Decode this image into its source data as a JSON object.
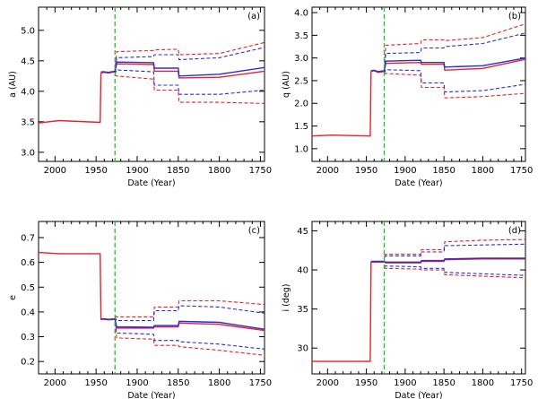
{
  "chart_data": [
    {
      "type": "line",
      "panel": "(a)",
      "xlabel": "Date (Year)",
      "ylabel": "a (AU)",
      "xlim": [
        2020,
        1745
      ],
      "ylim": [
        2.85,
        5.38
      ],
      "xticks": [
        2000,
        1950,
        1900,
        1850,
        1800,
        1750
      ],
      "yticks": [
        3.0,
        3.5,
        4.0,
        4.5,
        5.0
      ],
      "ytick_format": 1,
      "marker_year": 1927,
      "x": [
        2020,
        1995,
        1945,
        1944,
        1940,
        1935,
        1927,
        1925,
        1880,
        1879,
        1850,
        1849,
        1800,
        1745
      ],
      "series": [
        {
          "color": "#e8202a",
          "dash": false,
          "values": [
            3.48,
            3.52,
            3.49,
            4.3,
            4.31,
            4.3,
            4.32,
            4.45,
            4.44,
            4.33,
            4.33,
            4.22,
            4.23,
            4.33
          ]
        },
        {
          "color": "#2b2bd8",
          "dash": false,
          "values": [
            null,
            null,
            null,
            4.32,
            4.32,
            4.31,
            4.33,
            4.48,
            4.47,
            4.38,
            4.38,
            4.25,
            4.28,
            4.39
          ]
        },
        {
          "color": "#e8202a",
          "dash": true,
          "values": [
            null,
            null,
            null,
            null,
            null,
            null,
            4.34,
            4.65,
            4.67,
            4.68,
            4.69,
            4.6,
            4.62,
            4.8
          ]
        },
        {
          "color": "#2b2bd8",
          "dash": true,
          "values": [
            null,
            null,
            null,
            null,
            null,
            null,
            4.3,
            4.55,
            4.57,
            4.6,
            4.6,
            4.52,
            4.55,
            4.72
          ]
        },
        {
          "color": "#2b2bd8",
          "dash": true,
          "values": [
            null,
            null,
            null,
            null,
            null,
            null,
            4.28,
            4.35,
            4.32,
            4.1,
            4.1,
            3.95,
            3.95,
            4.02
          ]
        },
        {
          "color": "#e8202a",
          "dash": true,
          "values": [
            null,
            null,
            null,
            null,
            null,
            null,
            4.27,
            4.25,
            4.2,
            4.02,
            4.02,
            3.82,
            3.82,
            3.8
          ]
        }
      ]
    },
    {
      "type": "line",
      "panel": "(b)",
      "xlabel": "Date (Year)",
      "ylabel": "q (AU)",
      "xlim": [
        2020,
        1745
      ],
      "ylim": [
        0.72,
        4.12
      ],
      "xticks": [
        2000,
        1950,
        1900,
        1850,
        1800,
        1750
      ],
      "yticks": [
        1.0,
        1.5,
        2.0,
        2.5,
        3.0,
        3.5,
        4.0
      ],
      "ytick_format": 1,
      "marker_year": 1927,
      "x": [
        2020,
        1995,
        1945,
        1944,
        1940,
        1935,
        1927,
        1925,
        1880,
        1879,
        1850,
        1849,
        1800,
        1745
      ],
      "series": [
        {
          "color": "#e8202a",
          "dash": false,
          "values": [
            1.28,
            1.3,
            1.28,
            2.7,
            2.72,
            2.68,
            2.7,
            2.88,
            2.9,
            2.86,
            2.86,
            2.73,
            2.77,
            2.97
          ]
        },
        {
          "color": "#2b2bd8",
          "dash": false,
          "values": [
            null,
            null,
            null,
            2.72,
            2.73,
            2.7,
            2.72,
            2.93,
            2.95,
            2.9,
            2.9,
            2.8,
            2.83,
            3.0
          ]
        },
        {
          "color": "#e8202a",
          "dash": true,
          "values": [
            null,
            null,
            null,
            null,
            null,
            null,
            2.76,
            3.28,
            3.32,
            3.4,
            3.4,
            3.38,
            3.45,
            3.75
          ]
        },
        {
          "color": "#2b2bd8",
          "dash": true,
          "values": [
            null,
            null,
            null,
            null,
            null,
            null,
            2.74,
            3.1,
            3.12,
            3.22,
            3.22,
            3.25,
            3.32,
            3.55
          ]
        },
        {
          "color": "#2b2bd8",
          "dash": true,
          "values": [
            null,
            null,
            null,
            null,
            null,
            null,
            2.66,
            2.74,
            2.72,
            2.45,
            2.45,
            2.25,
            2.28,
            2.42
          ]
        },
        {
          "color": "#e8202a",
          "dash": true,
          "values": [
            null,
            null,
            null,
            null,
            null,
            null,
            2.64,
            2.66,
            2.62,
            2.35,
            2.35,
            2.12,
            2.15,
            2.22
          ]
        }
      ]
    },
    {
      "type": "line",
      "panel": "(c)",
      "xlabel": "Date (Year)",
      "ylabel": "e",
      "xlim": [
        2020,
        1745
      ],
      "ylim": [
        0.15,
        0.765
      ],
      "xticks": [
        2000,
        1950,
        1900,
        1850,
        1800,
        1750
      ],
      "yticks": [
        0.2,
        0.3,
        0.4,
        0.5,
        0.6,
        0.7
      ],
      "ytick_format": 1,
      "marker_year": 1927,
      "x": [
        2020,
        1995,
        1945,
        1944,
        1940,
        1935,
        1927,
        1925,
        1880,
        1879,
        1850,
        1849,
        1800,
        1745
      ],
      "series": [
        {
          "color": "#e8202a",
          "dash": false,
          "values": [
            0.64,
            0.635,
            0.635,
            0.37,
            0.37,
            0.368,
            0.37,
            0.335,
            0.335,
            0.34,
            0.34,
            0.355,
            0.35,
            0.325
          ]
        },
        {
          "color": "#2b2bd8",
          "dash": false,
          "values": [
            null,
            null,
            null,
            0.372,
            0.372,
            0.37,
            0.372,
            0.34,
            0.338,
            0.345,
            0.345,
            0.362,
            0.358,
            0.33
          ]
        },
        {
          "color": "#e8202a",
          "dash": true,
          "values": [
            null,
            null,
            null,
            null,
            null,
            null,
            0.385,
            0.38,
            0.38,
            0.42,
            0.42,
            0.445,
            0.445,
            0.43
          ]
        },
        {
          "color": "#2b2bd8",
          "dash": true,
          "values": [
            null,
            null,
            null,
            null,
            null,
            null,
            0.38,
            0.365,
            0.365,
            0.405,
            0.405,
            0.425,
            0.42,
            0.395
          ]
        },
        {
          "color": "#2b2bd8",
          "dash": true,
          "values": [
            null,
            null,
            null,
            null,
            null,
            null,
            0.36,
            0.315,
            0.31,
            0.285,
            0.285,
            0.28,
            0.27,
            0.25
          ]
        },
        {
          "color": "#e8202a",
          "dash": true,
          "values": [
            null,
            null,
            null,
            null,
            null,
            null,
            0.355,
            0.295,
            0.29,
            0.265,
            0.265,
            0.26,
            0.245,
            0.225
          ]
        }
      ]
    },
    {
      "type": "line",
      "panel": "(d)",
      "xlabel": "Date (Year)",
      "ylabel": "i (deg)",
      "xlim": [
        2020,
        1745
      ],
      "ylim": [
        26.7,
        46.2
      ],
      "xticks": [
        2000,
        1950,
        1900,
        1850,
        1800,
        1750
      ],
      "yticks": [
        30,
        35,
        40,
        45
      ],
      "ytick_format": 0,
      "marker_year": 1927,
      "x": [
        2020,
        1995,
        1945,
        1944,
        1940,
        1935,
        1927,
        1925,
        1880,
        1879,
        1850,
        1849,
        1800,
        1745
      ],
      "series": [
        {
          "color": "#e8202a",
          "dash": false,
          "values": [
            28.3,
            28.3,
            28.3,
            41.0,
            41.0,
            41.0,
            41.0,
            40.9,
            40.9,
            41.1,
            41.1,
            41.3,
            41.4,
            41.4
          ]
        },
        {
          "color": "#2b2bd8",
          "dash": false,
          "values": [
            null,
            null,
            null,
            41.1,
            41.1,
            41.1,
            41.1,
            41.0,
            41.0,
            41.2,
            41.2,
            41.4,
            41.5,
            41.5
          ]
        },
        {
          "color": "#e8202a",
          "dash": true,
          "values": [
            null,
            null,
            null,
            null,
            null,
            null,
            41.8,
            42.0,
            42.0,
            42.6,
            42.6,
            43.6,
            43.8,
            43.9
          ]
        },
        {
          "color": "#2b2bd8",
          "dash": true,
          "values": [
            null,
            null,
            null,
            null,
            null,
            null,
            41.6,
            41.8,
            41.8,
            42.3,
            42.3,
            43.1,
            43.2,
            43.3
          ]
        },
        {
          "color": "#2b2bd8",
          "dash": true,
          "values": [
            null,
            null,
            null,
            null,
            null,
            null,
            40.6,
            40.5,
            40.4,
            40.2,
            40.2,
            39.7,
            39.5,
            39.3
          ]
        },
        {
          "color": "#e8202a",
          "dash": true,
          "values": [
            null,
            null,
            null,
            null,
            null,
            null,
            40.4,
            40.2,
            40.1,
            40.0,
            40.0,
            39.4,
            39.2,
            39.0
          ]
        }
      ]
    }
  ],
  "colors": {
    "marker_line": "#20c020",
    "axis": "#000000"
  }
}
